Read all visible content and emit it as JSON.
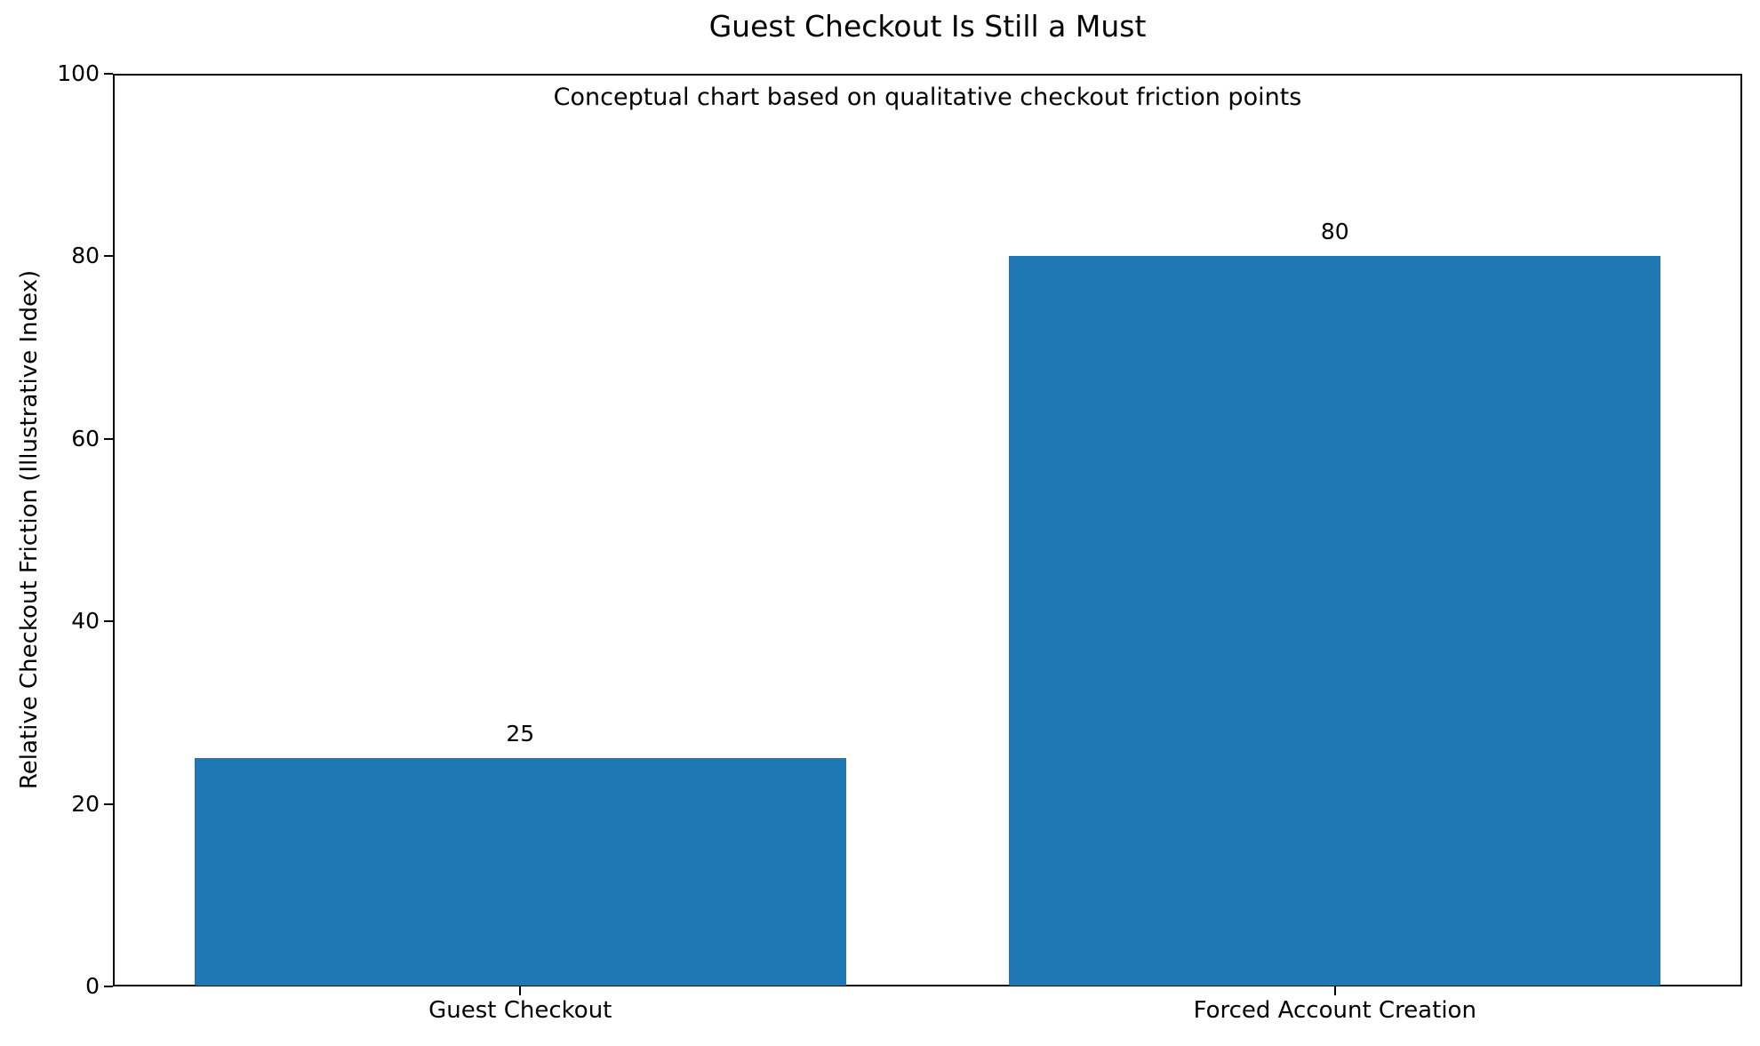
{
  "chart_data": {
    "type": "bar",
    "title": "Guest Checkout Is Still a Must",
    "annotation": "Conceptual chart based on qualitative checkout friction points",
    "categories": [
      "Guest Checkout",
      "Forced Account Creation"
    ],
    "values": [
      25,
      80
    ],
    "value_labels": [
      "25",
      "80"
    ],
    "xlabel": "",
    "ylabel": "Relative Checkout Friction (Illustrative Index)",
    "ylim": [
      0,
      100
    ],
    "yticks": [
      0,
      20,
      40,
      60,
      80,
      100
    ],
    "bar_color": "#1f77b4",
    "bar_width_fraction": 0.8,
    "grid": false,
    "legend": "none",
    "text_color": "#000000",
    "spine_color": "#000000",
    "background_color": "#ffffff"
  }
}
